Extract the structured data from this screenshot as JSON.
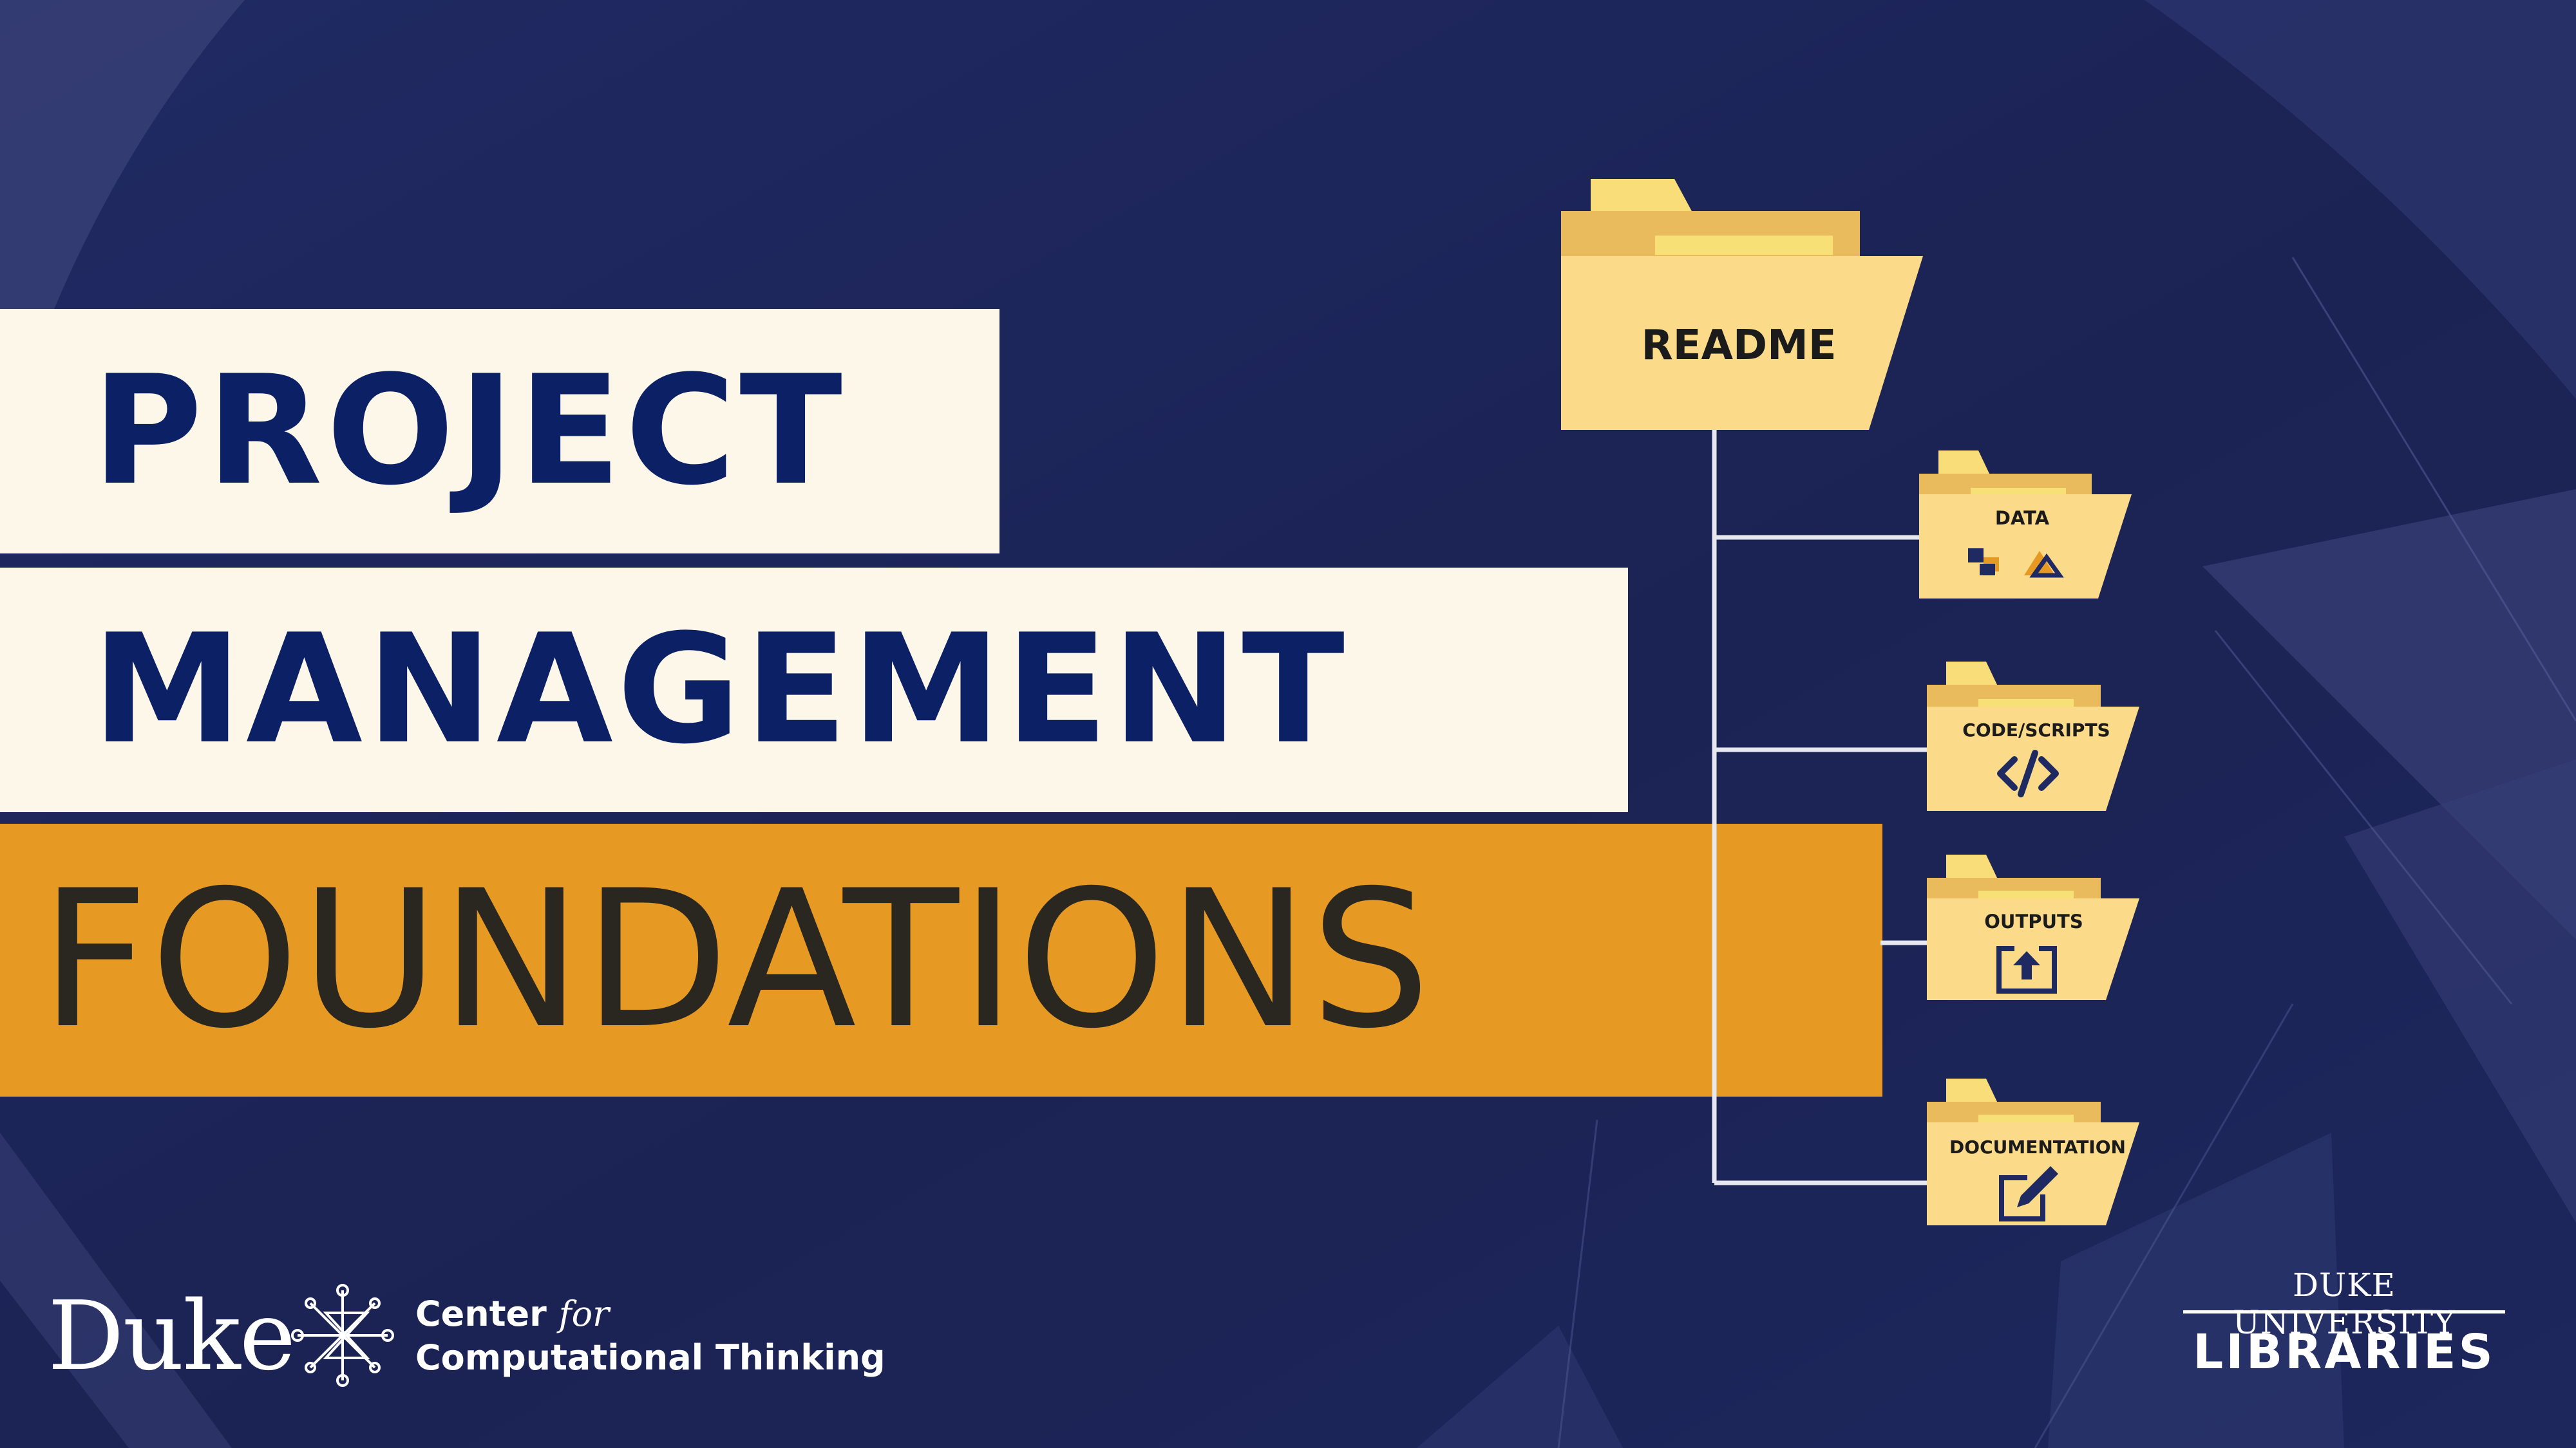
{
  "title": {
    "line1": "PROJECT",
    "line2": "MANAGEMENT",
    "line3": "FOUNDATIONS"
  },
  "folders": {
    "readme": "README",
    "data": "DATA",
    "code": "CODE/SCRIPTS",
    "outputs": "OUTPUTS",
    "documentation": "DOCUMENTATION"
  },
  "footer": {
    "duke": "Duke",
    "center_prefix": "Center",
    "center_for": "for",
    "center_name": "Computational Thinking",
    "libraries_top": "DUKE UNIVERSITY",
    "libraries_bottom": "LIBRARIES"
  },
  "colors": {
    "background": "#1d2456",
    "banner_cream": "#fcf7e9",
    "banner_orange": "#e79a23",
    "title_navy": "#0c2165",
    "folder_yellow": "#fbdb8a"
  }
}
